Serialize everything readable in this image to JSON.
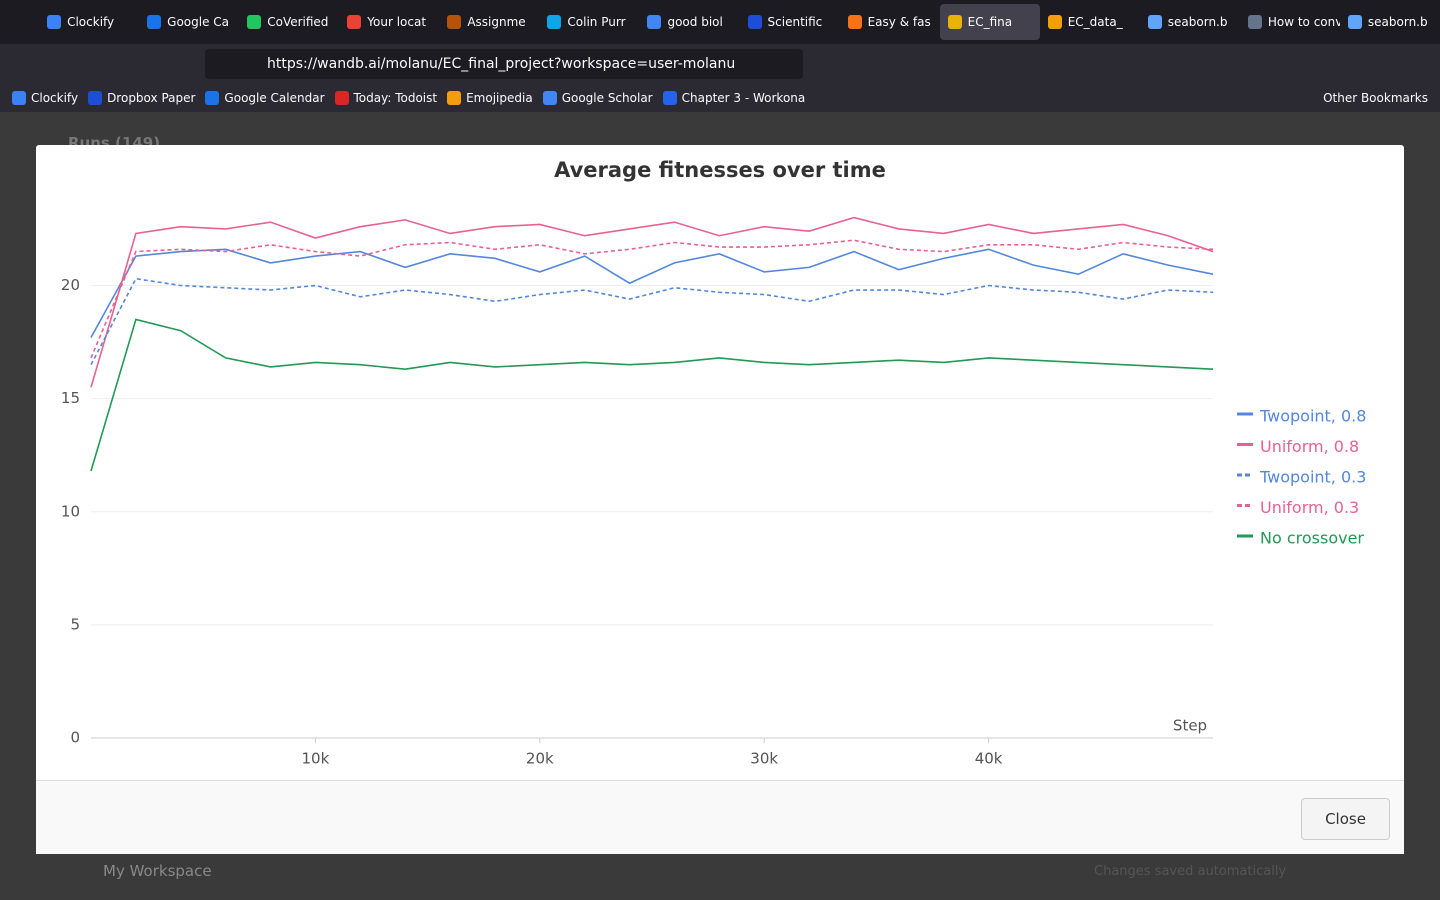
{
  "browser": {
    "tabs": [
      "Clockify",
      "Google Ca",
      "CoVerified",
      "Your locat",
      "Assignme",
      "Colin Purr",
      "good biol",
      "Scientific",
      "Easy & fas",
      "EC_fina",
      "EC_data_",
      "seaborn.b",
      "How to conver",
      "seaborn.b"
    ],
    "url": "https://wandb.ai/molanu/EC_final_project?workspace=user-molanu",
    "bookmarks": [
      "Clockify",
      "Dropbox Paper",
      "Google Calendar",
      "Today: Todoist",
      "Emojipedia",
      "Google Scholar",
      "Chapter 3 - Workona"
    ],
    "other_bookmarks": "Other Bookmarks"
  },
  "background": {
    "runs": "Runs (149)",
    "workspace": "My Workspace",
    "saved": "Changes saved automatically"
  },
  "chart_data": {
    "type": "line",
    "title": "Average fitnesses over time",
    "x_label": "Step",
    "x": [
      0,
      2000,
      4000,
      6000,
      8000,
      10000,
      12000,
      14000,
      16000,
      18000,
      20000,
      22000,
      24000,
      26000,
      28000,
      30000,
      32000,
      34000,
      36000,
      38000,
      40000,
      42000,
      44000,
      46000,
      48000,
      50000
    ],
    "xlim": [
      0,
      50000
    ],
    "xticks": [
      {
        "value": 10000,
        "label": "10k"
      },
      {
        "value": 20000,
        "label": "20k"
      },
      {
        "value": 30000,
        "label": "30k"
      },
      {
        "value": 40000,
        "label": "40k"
      }
    ],
    "ylim": [
      0,
      24
    ],
    "yticks": [
      0,
      5,
      10,
      15,
      20
    ],
    "grid": true,
    "legend": "right",
    "series": [
      {
        "name": "Twopoint, 0.8",
        "color": "#5387dd",
        "dashed": false,
        "values": [
          17.7,
          21.3,
          21.5,
          21.6,
          21.0,
          21.3,
          21.5,
          20.8,
          21.4,
          21.2,
          20.6,
          21.3,
          20.1,
          21.0,
          21.4,
          20.6,
          20.8,
          21.5,
          20.7,
          21.2,
          21.6,
          20.9,
          20.5,
          21.4,
          20.9,
          20.5
        ]
      },
      {
        "name": "Uniform, 0.8",
        "color": "#e9618f",
        "dashed": false,
        "values": [
          15.5,
          22.3,
          22.6,
          22.5,
          22.8,
          22.1,
          22.6,
          22.9,
          22.3,
          22.6,
          22.7,
          22.2,
          22.5,
          22.8,
          22.2,
          22.6,
          22.4,
          23.0,
          22.5,
          22.3,
          22.7,
          22.3,
          22.5,
          22.7,
          22.2,
          21.5
        ]
      },
      {
        "name": "Twopoint, 0.3",
        "color": "#5387dd",
        "dashed": true,
        "values": [
          16.5,
          20.3,
          20.0,
          19.9,
          19.8,
          20.0,
          19.5,
          19.8,
          19.6,
          19.3,
          19.6,
          19.8,
          19.4,
          19.9,
          19.7,
          19.6,
          19.3,
          19.8,
          19.8,
          19.6,
          20.0,
          19.8,
          19.7,
          19.4,
          19.8,
          19.7
        ]
      },
      {
        "name": "Uniform, 0.3",
        "color": "#e9618f",
        "dashed": true,
        "values": [
          16.8,
          21.5,
          21.6,
          21.5,
          21.8,
          21.5,
          21.3,
          21.8,
          21.9,
          21.6,
          21.8,
          21.4,
          21.6,
          21.9,
          21.7,
          21.7,
          21.8,
          22.0,
          21.6,
          21.5,
          21.8,
          21.8,
          21.6,
          21.9,
          21.7,
          21.6
        ]
      },
      {
        "name": "No crossover",
        "color": "#229954",
        "dashed": false,
        "values": [
          11.8,
          18.5,
          18.0,
          16.8,
          16.4,
          16.6,
          16.5,
          16.3,
          16.6,
          16.4,
          16.5,
          16.6,
          16.5,
          16.6,
          16.8,
          16.6,
          16.5,
          16.6,
          16.7,
          16.6,
          16.8,
          16.7,
          16.6,
          16.5,
          16.4,
          16.3
        ]
      }
    ]
  },
  "modal": {
    "close": "Close"
  }
}
